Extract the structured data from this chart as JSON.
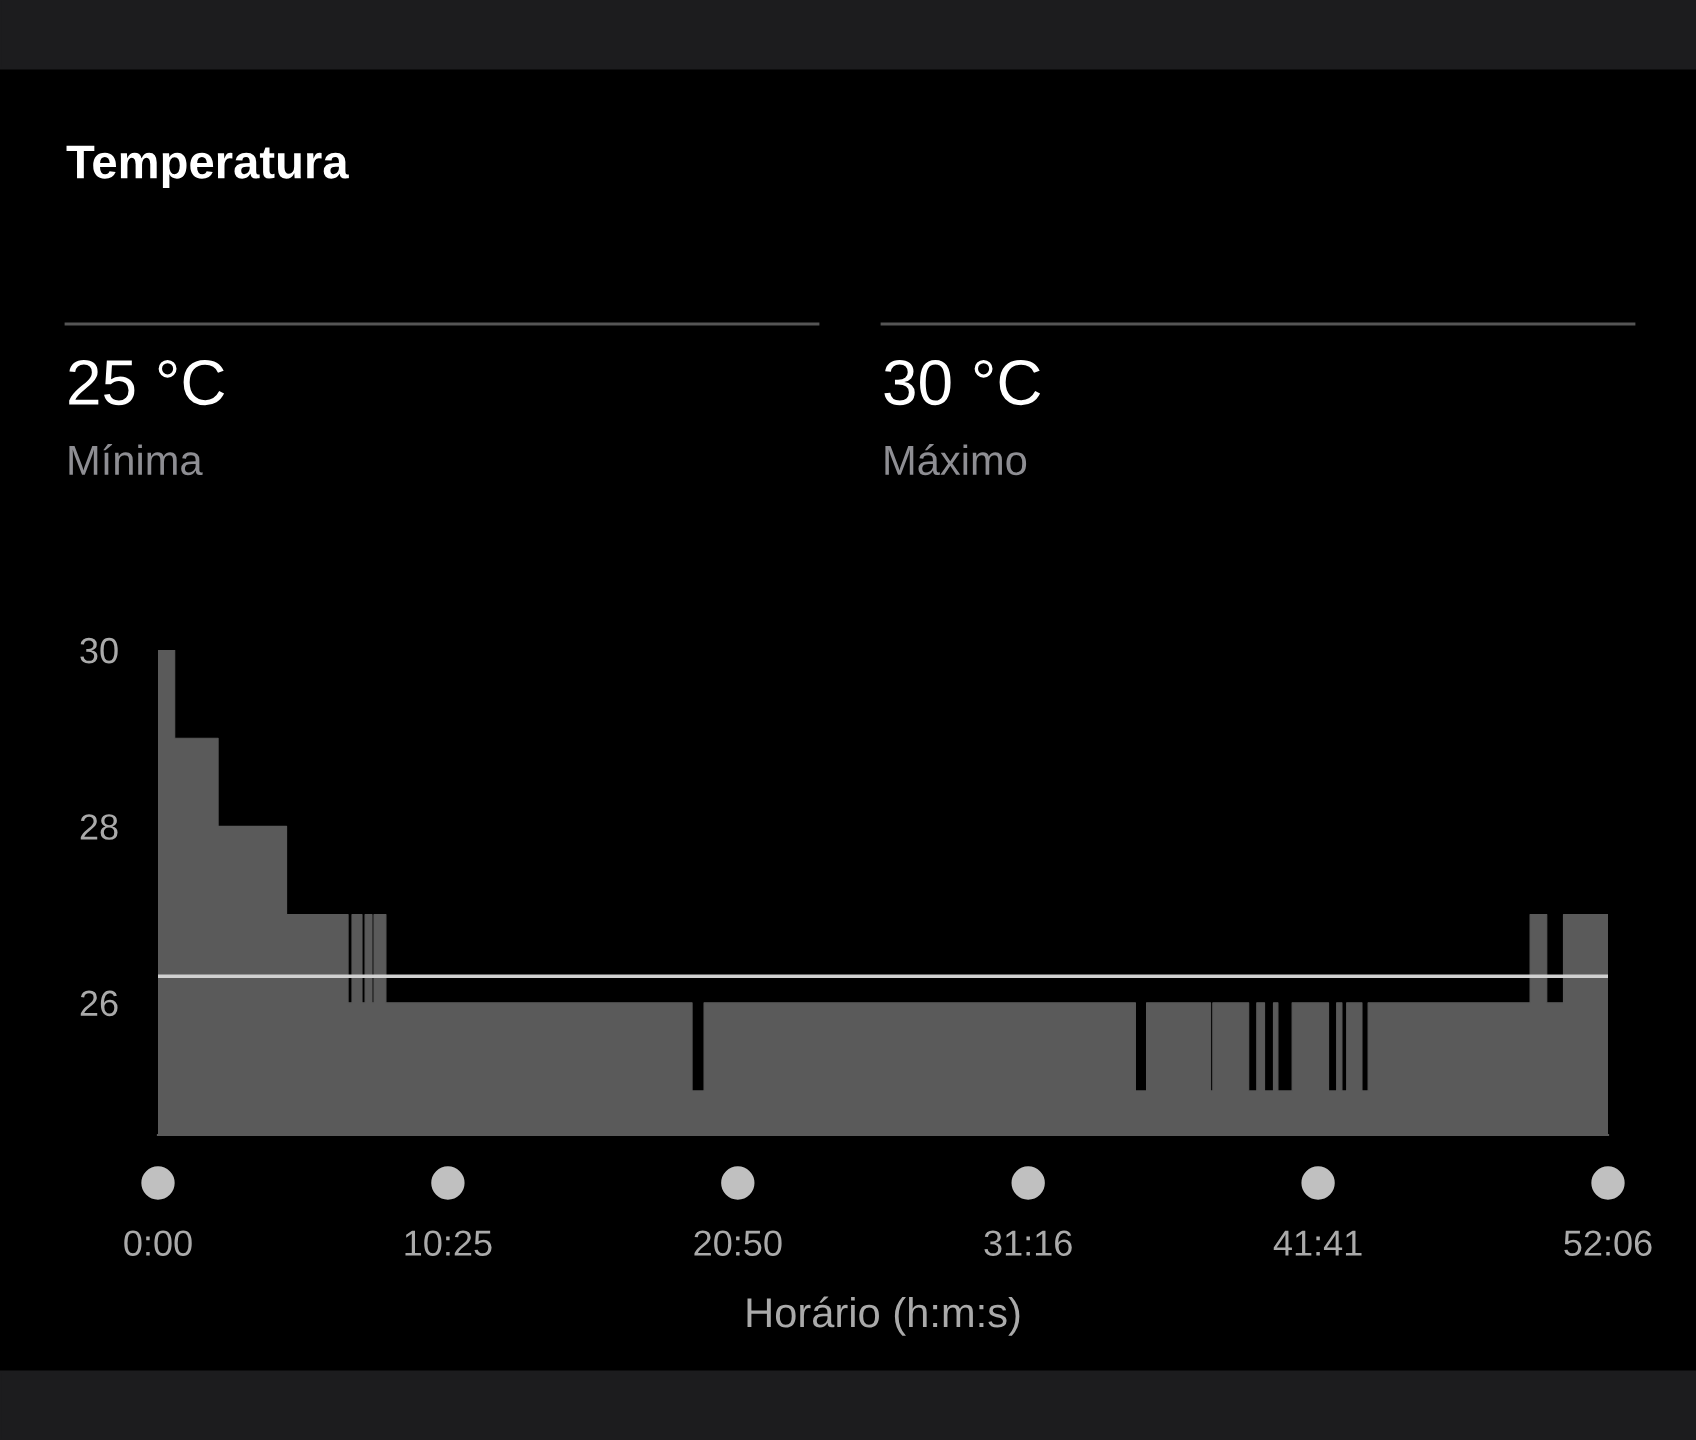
{
  "chart_data": {
    "type": "area",
    "title": "Temperatura",
    "xlabel": "Horário (h:m:s)",
    "annotations": [
      "25 °C",
      "Mínima",
      "30 °C",
      "Máximo"
    ],
    "x": [
      0,
      0.6,
      0.6,
      2.16,
      2.16,
      4.62,
      4.62,
      6.83,
      6.83,
      6.97,
      6.97,
      7.33,
      7.33,
      7.44,
      7.44,
      7.69,
      7.69,
      7.76,
      7.76,
      8.19,
      8.19,
      19.19,
      19.19,
      19.62,
      19.62,
      35.12,
      35.12,
      35.52,
      35.52,
      37.82,
      37.82,
      37.9,
      37.9,
      39.19,
      39.19,
      39.48,
      39.48,
      39.76,
      39.76,
      40.08,
      40.08,
      40.24,
      40.24,
      40.75,
      40.75,
      42.06,
      42.06,
      42.35,
      42.35,
      42.54,
      42.54,
      42.71,
      42.71,
      43.26,
      43.26,
      43.48,
      43.48,
      49.3,
      49.3,
      49.9,
      49.9,
      50.5,
      50.5,
      52.1
    ],
    "series": [
      {
        "color": "#5a5a5a",
        "values": [
          30,
          30,
          29,
          29,
          28,
          28,
          27,
          27,
          26,
          26,
          27,
          27,
          26,
          26,
          27,
          27,
          26,
          26,
          27,
          27,
          26,
          26,
          25,
          25,
          26,
          26,
          25,
          25,
          26,
          26,
          25,
          25,
          26,
          26,
          25,
          25,
          26,
          26,
          25,
          25,
          26,
          26,
          25,
          25,
          26,
          26,
          25,
          25,
          26,
          26,
          25,
          25,
          26,
          26,
          25,
          25,
          26,
          26,
          27,
          27,
          26,
          26,
          27,
          27
        ]
      }
    ],
    "ref_lines": [
      {
        "axis": "y",
        "value": 26.3,
        "color": "#d0d0d0"
      }
    ],
    "xlim": [
      0,
      52.1
    ],
    "ylim": [
      24.5,
      30
    ],
    "xticks": [
      {
        "value": 0,
        "label": "0:00"
      },
      {
        "value": 10.4167,
        "label": "10:25"
      },
      {
        "value": 20.8333,
        "label": "20:50"
      },
      {
        "value": 31.2667,
        "label": "31:16"
      },
      {
        "value": 41.6833,
        "label": "41:41"
      },
      {
        "value": 52.1,
        "label": "52:06"
      }
    ],
    "yticks": [
      26,
      28,
      30
    ],
    "grid": false,
    "legend": false
  }
}
